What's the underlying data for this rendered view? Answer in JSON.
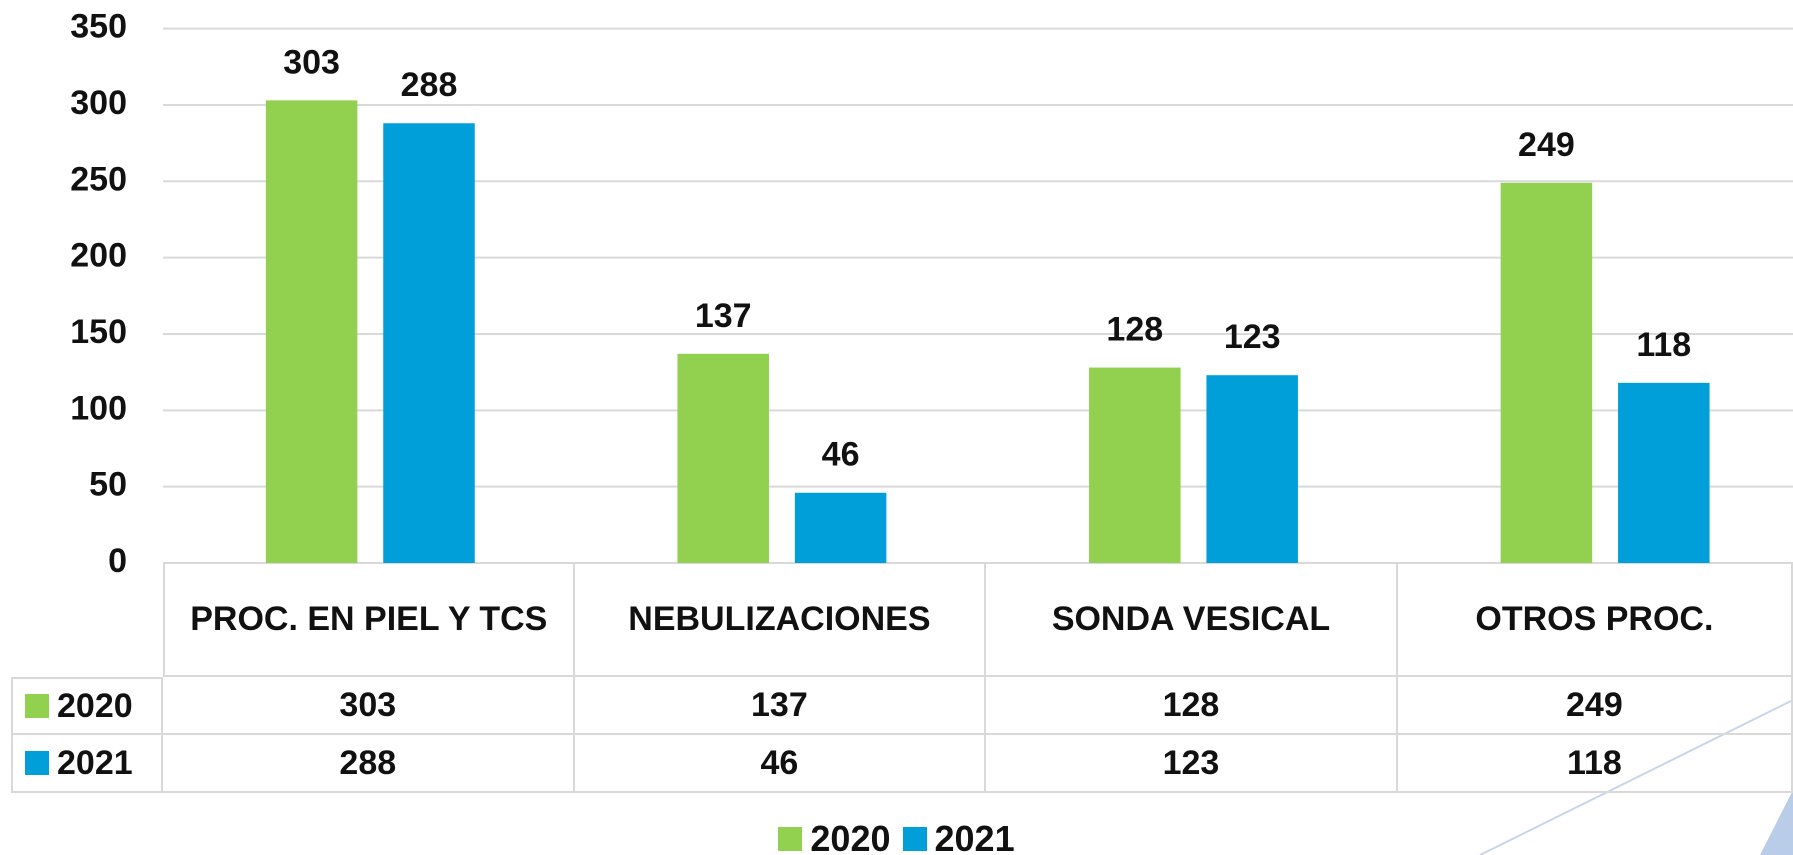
{
  "chart_data": {
    "type": "bar",
    "categories": [
      "PROC. EN PIEL Y TCS",
      "NEBULIZACIONES",
      "SONDA VESICAL",
      "OTROS PROC."
    ],
    "series": [
      {
        "name": "2020",
        "color": "#92d050",
        "values": [
          303,
          137,
          128,
          249
        ]
      },
      {
        "name": "2021",
        "color": "#009fda",
        "values": [
          288,
          46,
          123,
          118
        ]
      }
    ],
    "ylim": [
      0,
      350
    ],
    "yticks": [
      0,
      50,
      100,
      150,
      200,
      250,
      300,
      350
    ],
    "grid": true,
    "legend": "bottom"
  }
}
